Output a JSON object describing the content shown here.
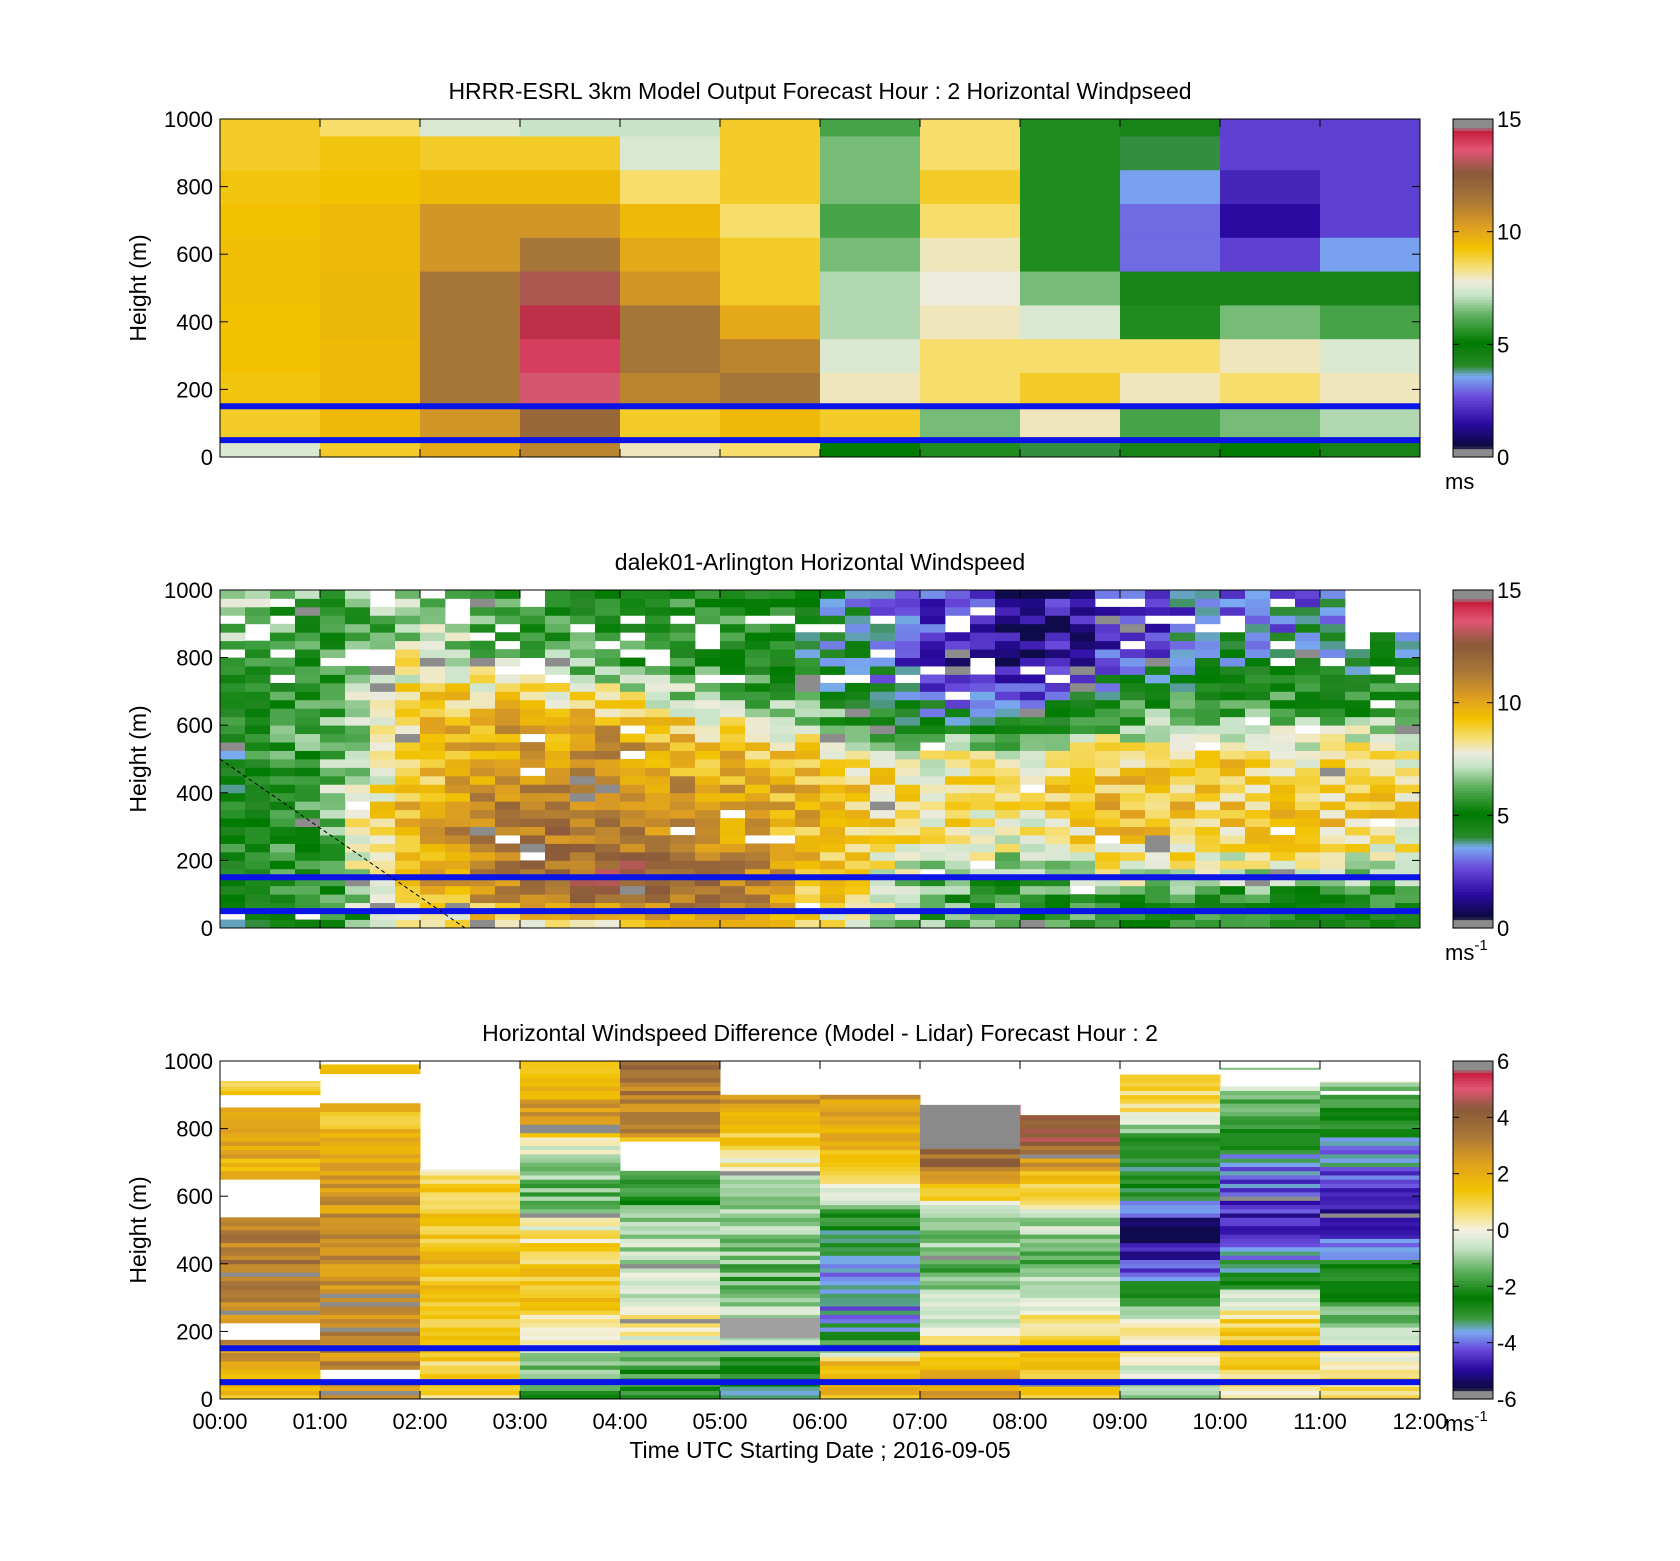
{
  "figure": {
    "xlabel": "Time UTC  Starting Date ; 2016-09-05"
  },
  "chart_data": [
    {
      "type": "heatmap",
      "title": "HRRR-ESRL 3km Model Output   Forecast Hour : 2 Horizontal Windpseed",
      "ylabel": "Height (m)",
      "ylim": [
        0,
        1000
      ],
      "yticks": [
        "0",
        "200",
        "400",
        "600",
        "800",
        "1000"
      ],
      "xlim": [
        "00:00",
        "12:00"
      ],
      "x_tick_labels": [],
      "colorbar": {
        "min": 0,
        "max": 15,
        "ticks": [
          "0",
          "5",
          "10",
          "15"
        ],
        "unit": "ms",
        "unit_sup": ""
      },
      "x_bins_hours": [
        0,
        1,
        2,
        3,
        4,
        5,
        6,
        7,
        8,
        9,
        10,
        11,
        12
      ],
      "height_bins_m": [
        0,
        50,
        150,
        250,
        350,
        450,
        550,
        650,
        750,
        850,
        950,
        1000
      ],
      "values": [
        [
          7.5,
          9.0,
          10.0,
          11.0,
          8.0,
          8.5,
          5.0,
          5.5,
          4.0,
          4.5,
          5.0,
          4.5
        ],
        [
          9.0,
          9.5,
          10.5,
          12.0,
          9.0,
          9.5,
          9.0,
          6.5,
          8.0,
          6.0,
          6.5,
          7.0
        ],
        [
          9.2,
          9.5,
          11.5,
          13.5,
          11.0,
          11.5,
          8.0,
          8.5,
          9.0,
          8.0,
          8.5,
          8.0
        ],
        [
          9.3,
          9.5,
          11.5,
          14.0,
          11.5,
          11.0,
          7.5,
          8.5,
          8.5,
          8.5,
          8.0,
          7.5
        ],
        [
          9.3,
          9.6,
          11.5,
          14.5,
          11.5,
          10.0,
          7.0,
          8.0,
          7.5,
          5.5,
          6.5,
          6.0
        ],
        [
          9.4,
          9.6,
          11.5,
          13.0,
          10.5,
          9.0,
          7.0,
          7.8,
          6.5,
          4.5,
          4.5,
          4.5
        ],
        [
          9.4,
          9.5,
          10.5,
          11.5,
          10.0,
          9.0,
          6.5,
          8.0,
          5.5,
          3.0,
          2.5,
          3.5
        ],
        [
          9.3,
          9.5,
          10.5,
          10.5,
          9.5,
          8.5,
          6.0,
          8.5,
          5.5,
          3.0,
          1.5,
          2.5
        ],
        [
          9.2,
          9.3,
          9.5,
          9.5,
          8.5,
          9.0,
          6.5,
          9.0,
          5.5,
          3.5,
          2.0,
          2.5
        ],
        [
          9.0,
          9.2,
          9.0,
          9.0,
          7.5,
          9.0,
          6.5,
          8.5,
          5.5,
          4.0,
          2.5,
          2.5
        ],
        [
          9.0,
          8.5,
          7.5,
          7.2,
          7.2,
          9.0,
          6.0,
          8.5,
          5.5,
          4.5,
          2.5,
          2.5
        ]
      ],
      "overlay_lines_m": [
        50,
        150
      ]
    },
    {
      "type": "heatmap",
      "title": "dalek01-Arlington  Horizontal Windspeed",
      "ylabel": "Height (m)",
      "ylim": [
        0,
        1000
      ],
      "yticks": [
        "0",
        "200",
        "400",
        "600",
        "800",
        "1000"
      ],
      "xlim": [
        "00:00",
        "12:00"
      ],
      "x_tick_labels": [],
      "colorbar": {
        "min": 0,
        "max": 15,
        "ticks": [
          "0",
          "5",
          "10",
          "15"
        ],
        "unit": "ms",
        "unit_sup": "-1"
      },
      "x_step_hours": 0.25,
      "data_until_hours": 11.85,
      "height_step_m": 25,
      "keyframes_hours": [
        0,
        1,
        2,
        3,
        4,
        5,
        6,
        7,
        8,
        9,
        10,
        11,
        12
      ],
      "keyframe_heights_m": [
        0,
        100,
        200,
        300,
        400,
        500,
        600,
        700,
        800,
        900,
        1000
      ],
      "keyframe_values": [
        [
          4.0,
          5.0,
          7.5,
          8.5,
          8.5,
          9.0,
          8.5,
          6.5,
          6.0,
          5.0,
          5.0,
          4.5,
          4.5
        ],
        [
          4.5,
          5.5,
          9.5,
          11.0,
          12.5,
          12.0,
          9.0,
          6.0,
          5.5,
          6.0,
          6.0,
          5.5,
          5.5
        ],
        [
          5.0,
          6.0,
          10.0,
          11.5,
          12.0,
          11.0,
          9.5,
          7.5,
          7.0,
          8.5,
          8.0,
          8.0,
          7.5
        ],
        [
          5.0,
          6.5,
          10.0,
          11.5,
          11.5,
          10.5,
          9.5,
          8.5,
          8.0,
          9.5,
          9.0,
          9.0,
          8.5
        ],
        [
          4.5,
          6.5,
          9.5,
          11.0,
          11.0,
          10.0,
          9.5,
          8.5,
          8.5,
          9.5,
          9.0,
          9.0,
          8.5
        ],
        [
          4.5,
          6.0,
          9.0,
          10.5,
          10.5,
          9.5,
          9.0,
          8.0,
          8.0,
          9.0,
          9.0,
          8.5,
          8.0
        ],
        [
          5.0,
          6.0,
          9.0,
          10.0,
          10.0,
          8.5,
          7.0,
          5.0,
          5.0,
          6.5,
          7.0,
          7.0,
          6.5
        ],
        [
          5.5,
          5.5,
          9.0,
          8.5,
          7.5,
          6.5,
          5.0,
          3.0,
          2.0,
          4.5,
          5.5,
          5.5,
          5.0
        ],
        [
          6.5,
          5.0,
          8.0,
          6.5,
          5.5,
          5.0,
          4.5,
          2.0,
          1.0,
          2.5,
          4.0,
          4.5,
          4.5
        ],
        [
          7.0,
          5.5,
          7.0,
          5.5,
          5.0,
          5.5,
          4.5,
          2.5,
          1.0,
          2.0,
          3.0,
          3.5,
          3.5
        ],
        [
          7.0,
          6.0,
          6.5,
          5.5,
          5.0,
          5.5,
          5.0,
          3.0,
          1.5,
          2.5,
          3.5,
          3.0,
          3.0
        ]
      ],
      "overlay_lines_m": [
        50,
        150
      ],
      "dashed_line": {
        "from": {
          "hours": 0,
          "m": 500
        },
        "to": {
          "hours": 2.45,
          "m": 0
        }
      }
    },
    {
      "type": "heatmap",
      "title": "Horizontal Windspeed Difference (Model - Lidar) Forecast Hour : 2",
      "ylabel": "Height (m)",
      "ylim": [
        0,
        1000
      ],
      "yticks": [
        "0",
        "200",
        "400",
        "600",
        "800",
        "1000"
      ],
      "xlim": [
        "00:00",
        "12:00"
      ],
      "x_tick_labels": [
        "00:00",
        "01:00",
        "02:00",
        "03:00",
        "04:00",
        "05:00",
        "06:00",
        "07:00",
        "08:00",
        "09:00",
        "10:00",
        "11:00",
        "12:00"
      ],
      "colorbar": {
        "min": -6,
        "max": 6,
        "ticks": [
          "-6",
          "-4",
          "-2",
          "0",
          "2",
          "4",
          "6"
        ],
        "unit": "ms",
        "unit_sup": "-1"
      },
      "x_bins_hours": [
        0,
        1,
        2,
        3,
        4,
        5,
        6,
        7,
        8,
        9,
        10,
        11,
        12
      ],
      "height_step_m": 12.5,
      "column_profiles": [
        {
          "hours": [
            0,
            1
          ],
          "top_m": 940,
          "knots_m": [
            0,
            150,
            250,
            400,
            500,
            650,
            800,
            940
          ],
          "knots_v": [
            1.5,
            2.5,
            3.0,
            3.5,
            3.0,
            1.5,
            2.5,
            1.0
          ],
          "gaps_m": [
            [
              540,
              650
            ],
            [
              860,
              900
            ],
            [
              180,
              220
            ]
          ]
        },
        {
          "hours": [
            1,
            2
          ],
          "top_m": 990,
          "knots_m": [
            0,
            200,
            400,
            600,
            800,
            990
          ],
          "knots_v": [
            2.5,
            3.0,
            2.8,
            2.5,
            1.5,
            1.5
          ],
          "gaps_m": [
            [
              880,
              960
            ],
            [
              50,
              90
            ]
          ]
        },
        {
          "hours": [
            2,
            3
          ],
          "top_m": 680,
          "knots_m": [
            0,
            200,
            400,
            600,
            680
          ],
          "knots_v": [
            1.0,
            1.2,
            1.5,
            1.0,
            0.5
          ],
          "gaps_m": []
        },
        {
          "hours": [
            3,
            4
          ],
          "top_m": 1000,
          "knots_m": [
            0,
            100,
            300,
            450,
            600,
            700,
            850,
            1000
          ],
          "knots_v": [
            -2.0,
            -1.0,
            1.5,
            1.0,
            -1.5,
            -1.0,
            2.5,
            1.5
          ],
          "gaps_m": []
        },
        {
          "hours": [
            4,
            5
          ],
          "top_m": 1000,
          "knots_m": [
            0,
            100,
            200,
            350,
            500,
            650,
            800,
            1000
          ],
          "knots_v": [
            -2.5,
            -1.5,
            0.5,
            -0.5,
            -1.0,
            -2.5,
            3.0,
            3.5
          ],
          "gaps_m": [
            [
              680,
              720
            ],
            [
              730,
              760
            ]
          ]
        },
        {
          "hours": [
            5,
            6
          ],
          "top_m": 900,
          "knots_m": [
            0,
            100,
            200,
            350,
            500,
            650,
            750,
            900
          ],
          "knots_v": [
            -3.0,
            -2.5,
            -0.5,
            -1.5,
            -1.0,
            -0.5,
            1.0,
            2.5
          ],
          "gaps_m": []
        },
        {
          "hours": [
            6,
            7
          ],
          "top_m": 900,
          "knots_m": [
            0,
            100,
            200,
            350,
            500,
            600,
            750,
            900
          ],
          "knots_v": [
            1.5,
            2.0,
            -3.5,
            -4.0,
            -3.0,
            -0.5,
            2.0,
            2.5
          ],
          "gaps_m": []
        },
        {
          "hours": [
            7,
            8
          ],
          "top_m": 870,
          "knots_m": [
            0,
            100,
            250,
            400,
            550,
            650,
            700,
            740,
            870
          ],
          "knots_v": [
            2.5,
            2.0,
            -0.5,
            -1.5,
            -0.5,
            2.5,
            4.0,
            3.5,
            6.0
          ],
          "gaps_m": []
        },
        {
          "hours": [
            8,
            9
          ],
          "top_m": 840,
          "knots_m": [
            0,
            100,
            250,
            400,
            500,
            600,
            700,
            760,
            840
          ],
          "knots_v": [
            1.5,
            1.5,
            0.5,
            -1.5,
            -1.0,
            0.5,
            2.5,
            4.0,
            4.5
          ],
          "gaps_m": []
        },
        {
          "hours": [
            9,
            10
          ],
          "top_m": 960,
          "knots_m": [
            0,
            100,
            200,
            300,
            400,
            500,
            600,
            750,
            850,
            960
          ],
          "knots_v": [
            -1.0,
            0.0,
            1.0,
            -2.0,
            -4.5,
            -5.5,
            -3.0,
            -2.5,
            0.5,
            1.5
          ],
          "gaps_m": []
        },
        {
          "hours": [
            10,
            11
          ],
          "top_m": 980,
          "knots_m": [
            0,
            100,
            200,
            300,
            400,
            500,
            600,
            750,
            850,
            980
          ],
          "knots_v": [
            0.5,
            1.0,
            1.5,
            -0.5,
            -3.5,
            -4.5,
            -4.5,
            -3.0,
            -1.5,
            -0.5
          ],
          "gaps_m": [
            [
              920,
              970
            ]
          ]
        },
        {
          "hours": [
            11,
            12
          ],
          "top_m": 940,
          "knots_m": [
            0,
            100,
            200,
            300,
            400,
            500,
            600,
            750,
            850,
            940
          ],
          "knots_v": [
            1.0,
            0.5,
            -0.5,
            -2.0,
            -3.0,
            -4.5,
            -4.5,
            -3.5,
            -2.0,
            -0.5
          ],
          "gaps_m": [
            [
              900,
              915
            ]
          ]
        }
      ],
      "overlay_lines_m": [
        50,
        150
      ]
    }
  ]
}
